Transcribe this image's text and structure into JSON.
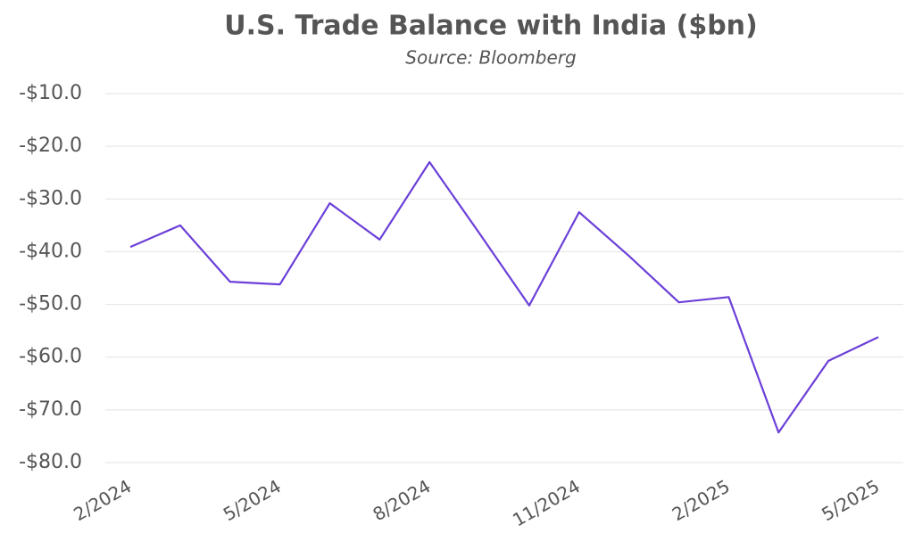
{
  "chart_data": {
    "type": "line",
    "title": "U.S. Trade Balance with India ($bn)",
    "subtitle": "Source: Bloomberg",
    "categories": [
      "2/2024",
      null,
      null,
      "5/2024",
      null,
      null,
      "8/2024",
      null,
      null,
      "11/2024",
      null,
      null,
      "2/2025",
      null,
      null,
      "5/2025"
    ],
    "values": [
      -39.1,
      -35.0,
      -45.7,
      -46.2,
      -30.8,
      -37.7,
      -23.0,
      -36.5,
      -50.2,
      -32.5,
      -40.8,
      -49.6,
      -48.6,
      -74.3,
      -60.7,
      -56.2
    ],
    "color": "#6b3fd8",
    "ylim": [
      -80,
      -10
    ],
    "yticks": [
      {
        "value": -10,
        "label": "-$10.0"
      },
      {
        "value": -20,
        "label": "-$20.0"
      },
      {
        "value": -30,
        "label": "-$30.0"
      },
      {
        "value": -40,
        "label": "-$40.0"
      },
      {
        "value": -50,
        "label": "-$50.0"
      },
      {
        "value": -60,
        "label": "-$60.0"
      },
      {
        "value": -70,
        "label": "-$70.0"
      },
      {
        "value": -80,
        "label": "-$80.0"
      }
    ],
    "grid": true
  }
}
